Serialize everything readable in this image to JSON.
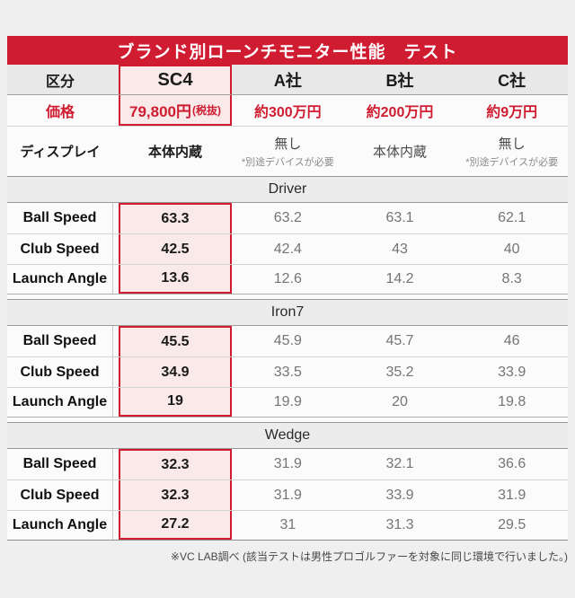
{
  "title": "ブランド別ローンチモニター性能　テスト",
  "colors": {
    "accent_red": "#cf1c31",
    "highlight_pink": "#f9e9e9",
    "page_bg": "#f0eff0",
    "header_bg": "#e9e8e9",
    "section_bar_bg": "#edecec",
    "value_gray": "#757575"
  },
  "price_row": {
    "label": "価格",
    "sc4_main": "79,800円",
    "sc4_note": "(税抜)",
    "a": "約300万円",
    "b": "約200万円",
    "c": "約9万円"
  },
  "display_row": {
    "label": "ディスプレイ",
    "sc4": "本体内蔵",
    "a_main": "無し",
    "a_note": "*別途デバイスが必要",
    "b_main": "本体内蔵",
    "c_main": "無し",
    "c_note": "*別途デバイスが必要"
  },
  "footer": "※VC LAB調べ (該当テストは男性プロゴルファーを対象に同じ環境で行いました。)",
  "chart_data": {
    "type": "table",
    "title": "ブランド別ローンチモニター性能　テスト",
    "columns": [
      "区分",
      "SC4",
      "A社",
      "B社",
      "C社"
    ],
    "price": [
      "79,800円(税抜)",
      "約300万円",
      "約200万円",
      "約9万円"
    ],
    "display": [
      "本体内蔵",
      "無し *別途デバイスが必要",
      "本体内蔵",
      "無し *別途デバイスが必要"
    ],
    "sections": [
      {
        "name": "Driver",
        "metrics": [
          {
            "label": "Ball Speed",
            "values": [
              63.3,
              63.2,
              63.1,
              62.1
            ]
          },
          {
            "label": "Club Speed",
            "values": [
              42.5,
              42.4,
              43,
              40
            ]
          },
          {
            "label": "Launch Angle",
            "values": [
              13.6,
              12.6,
              14.2,
              8.3
            ]
          }
        ]
      },
      {
        "name": "Iron7",
        "metrics": [
          {
            "label": "Ball Speed",
            "values": [
              45.5,
              45.9,
              45.7,
              46
            ]
          },
          {
            "label": "Club Speed",
            "values": [
              34.9,
              33.5,
              35.2,
              33.9
            ]
          },
          {
            "label": "Launch Angle",
            "values": [
              19,
              19.9,
              20,
              19.8
            ]
          }
        ]
      },
      {
        "name": "Wedge",
        "metrics": [
          {
            "label": "Ball Speed",
            "values": [
              32.3,
              31.9,
              32.1,
              36.6
            ]
          },
          {
            "label": "Club Speed",
            "values": [
              32.3,
              31.9,
              33.9,
              31.9
            ]
          },
          {
            "label": "Launch Angle",
            "values": [
              27.2,
              31,
              31.3,
              29.5
            ]
          }
        ]
      }
    ]
  }
}
